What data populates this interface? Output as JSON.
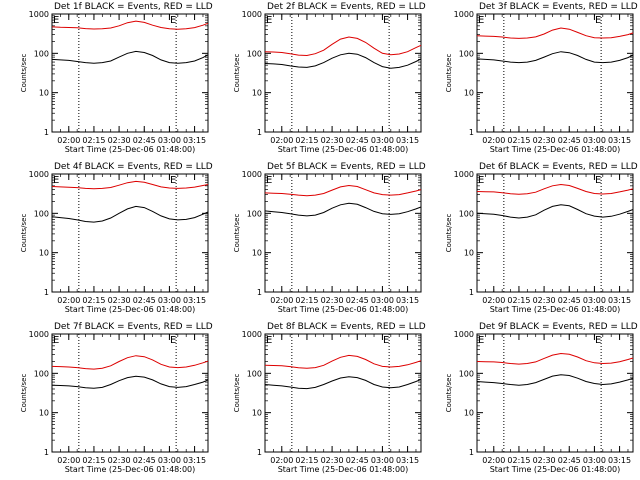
{
  "chart_data": [
    {
      "type": "line",
      "title": "Det 1f BLACK = Events, RED = LLD",
      "xlabel": "Start Time (25-Dec-06 01:48:00)",
      "ylabel": "Counts/sec",
      "x": [
        "01:50",
        "01:55",
        "02:00",
        "02:05",
        "02:10",
        "02:15",
        "02:20",
        "02:25",
        "02:30",
        "02:35",
        "02:40",
        "02:45",
        "02:50",
        "02:55",
        "03:00",
        "03:05",
        "03:10",
        "03:15",
        "03:20",
        "03:23"
      ],
      "series": [
        {
          "name": "Events",
          "color": "#000000",
          "values": [
            70,
            68,
            66,
            62,
            58,
            56,
            58,
            64,
            80,
            100,
            112,
            105,
            88,
            68,
            58,
            56,
            58,
            64,
            78,
            92
          ]
        },
        {
          "name": "LLD",
          "color": "#dd0000",
          "values": [
            470,
            460,
            455,
            445,
            425,
            415,
            420,
            440,
            500,
            600,
            660,
            610,
            520,
            455,
            420,
            410,
            420,
            450,
            520,
            580
          ]
        }
      ],
      "ylim": [
        1,
        1000
      ],
      "yscale": "log",
      "yticks": [
        "1",
        "10",
        "100",
        "1000"
      ],
      "xticks": [
        "02:00",
        "02:15",
        "02:30",
        "02:45",
        "03:00",
        "03:15"
      ],
      "markers": [
        "02:06",
        "03:04"
      ],
      "marker_label": "E"
    },
    {
      "type": "line",
      "title": "Det 2f BLACK = Events, RED = LLD",
      "xlabel": "Start Time (25-Dec-06 01:48:00)",
      "ylabel": "Counts/sec",
      "x": [
        "01:50",
        "01:55",
        "02:00",
        "02:05",
        "02:10",
        "02:15",
        "02:20",
        "02:25",
        "02:30",
        "02:35",
        "02:40",
        "02:45",
        "02:50",
        "02:55",
        "03:00",
        "03:05",
        "03:10",
        "03:15",
        "03:20",
        "03:23"
      ],
      "series": [
        {
          "name": "Events",
          "color": "#000000",
          "values": [
            55,
            54,
            52,
            48,
            45,
            44,
            48,
            58,
            75,
            92,
            100,
            95,
            78,
            58,
            46,
            42,
            44,
            50,
            62,
            72
          ]
        },
        {
          "name": "LLD",
          "color": "#dd0000",
          "values": [
            110,
            108,
            105,
            98,
            90,
            88,
            98,
            120,
            170,
            230,
            260,
            240,
            190,
            135,
            100,
            92,
            96,
            110,
            140,
            160
          ]
        }
      ],
      "ylim": [
        1,
        1000
      ],
      "yscale": "log",
      "yticks": [
        "1",
        "10",
        "100",
        "1000"
      ],
      "xticks": [
        "02:00",
        "02:15",
        "02:30",
        "02:45",
        "03:00",
        "03:15"
      ],
      "markers": [
        "02:06",
        "03:04"
      ],
      "marker_label": "E"
    },
    {
      "type": "line",
      "title": "Det 3f BLACK = Events, RED = LLD",
      "xlabel": "Start Time (25-Dec-06 01:48:00)",
      "ylabel": "Counts/sec",
      "x": [
        "01:50",
        "01:55",
        "02:00",
        "02:05",
        "02:10",
        "02:15",
        "02:20",
        "02:25",
        "02:30",
        "02:35",
        "02:40",
        "02:45",
        "02:50",
        "02:55",
        "03:00",
        "03:05",
        "03:10",
        "03:15",
        "03:20",
        "03:23"
      ],
      "series": [
        {
          "name": "Events",
          "color": "#000000",
          "values": [
            72,
            70,
            68,
            64,
            60,
            58,
            60,
            66,
            80,
            98,
            110,
            104,
            88,
            70,
            60,
            58,
            60,
            66,
            78,
            90
          ]
        },
        {
          "name": "LLD",
          "color": "#dd0000",
          "values": [
            280,
            275,
            270,
            260,
            245,
            240,
            245,
            262,
            310,
            390,
            440,
            410,
            340,
            280,
            250,
            245,
            250,
            270,
            300,
            330
          ]
        }
      ],
      "ylim": [
        1,
        1000
      ],
      "yscale": "log",
      "yticks": [
        "1",
        "10",
        "100",
        "1000"
      ],
      "xticks": [
        "02:00",
        "02:15",
        "02:30",
        "02:45",
        "03:00",
        "03:15"
      ],
      "markers": [
        "02:06",
        "03:04"
      ],
      "marker_label": "E"
    },
    {
      "type": "line",
      "title": "Det 4f BLACK = Events, RED = LLD",
      "xlabel": "Start Time (25-Dec-06 01:48:00)",
      "ylabel": "Counts/sec",
      "x": [
        "01:50",
        "01:55",
        "02:00",
        "02:05",
        "02:10",
        "02:15",
        "02:20",
        "02:25",
        "02:30",
        "02:35",
        "02:40",
        "02:45",
        "02:50",
        "02:55",
        "03:00",
        "03:05",
        "03:10",
        "03:15",
        "03:20",
        "03:23"
      ],
      "series": [
        {
          "name": "Events",
          "color": "#000000",
          "values": [
            82,
            78,
            74,
            68,
            62,
            60,
            64,
            76,
            100,
            130,
            150,
            140,
            112,
            86,
            72,
            68,
            70,
            78,
            95,
            108
          ]
        },
        {
          "name": "LLD",
          "color": "#dd0000",
          "values": [
            480,
            470,
            460,
            450,
            430,
            420,
            430,
            455,
            520,
            600,
            650,
            615,
            540,
            470,
            440,
            430,
            440,
            465,
            510,
            540
          ]
        }
      ],
      "ylim": [
        1,
        1000
      ],
      "yscale": "log",
      "yticks": [
        "1",
        "10",
        "100",
        "1000"
      ],
      "xticks": [
        "02:00",
        "02:15",
        "02:30",
        "02:45",
        "03:00",
        "03:15"
      ],
      "markers": [
        "02:06",
        "03:04"
      ],
      "marker_label": "E"
    },
    {
      "type": "line",
      "title": "Det 5f BLACK = Events, RED = LLD",
      "xlabel": "Start Time (25-Dec-06 01:48:00)",
      "ylabel": "Counts/sec",
      "x": [
        "01:50",
        "01:55",
        "02:00",
        "02:05",
        "02:10",
        "02:15",
        "02:20",
        "02:25",
        "02:30",
        "02:35",
        "02:40",
        "02:45",
        "02:50",
        "02:55",
        "03:00",
        "03:05",
        "03:10",
        "03:15",
        "03:20",
        "03:23"
      ],
      "series": [
        {
          "name": "Events",
          "color": "#000000",
          "values": [
            115,
            110,
            105,
            98,
            90,
            86,
            90,
            105,
            135,
            165,
            180,
            170,
            140,
            112,
            98,
            94,
            98,
            110,
            130,
            145
          ]
        },
        {
          "name": "LLD",
          "color": "#dd0000",
          "values": [
            330,
            325,
            320,
            305,
            290,
            280,
            290,
            320,
            390,
            470,
            510,
            480,
            400,
            330,
            300,
            290,
            300,
            330,
            370,
            400
          ]
        }
      ],
      "ylim": [
        1,
        1000
      ],
      "yscale": "log",
      "yticks": [
        "1",
        "10",
        "100",
        "1000"
      ],
      "xticks": [
        "02:00",
        "02:15",
        "02:30",
        "02:45",
        "03:00",
        "03:15"
      ],
      "markers": [
        "02:06",
        "03:04"
      ],
      "marker_label": "E"
    },
    {
      "type": "line",
      "title": "Det 6f BLACK = Events, RED = LLD",
      "xlabel": "Start Time (25-Dec-06 01:48:00)",
      "ylabel": "Counts/sec",
      "x": [
        "01:50",
        "01:55",
        "02:00",
        "02:05",
        "02:10",
        "02:15",
        "02:20",
        "02:25",
        "02:30",
        "02:35",
        "02:40",
        "02:45",
        "02:50",
        "02:55",
        "03:00",
        "03:05",
        "03:10",
        "03:15",
        "03:20",
        "03:23"
      ],
      "series": [
        {
          "name": "Events",
          "color": "#000000",
          "values": [
            100,
            98,
            95,
            88,
            80,
            76,
            80,
            92,
            120,
            150,
            165,
            155,
            125,
            98,
            85,
            80,
            84,
            95,
            112,
            125
          ]
        },
        {
          "name": "LLD",
          "color": "#dd0000",
          "values": [
            360,
            355,
            350,
            335,
            315,
            305,
            315,
            345,
            420,
            500,
            540,
            510,
            430,
            360,
            320,
            310,
            320,
            350,
            390,
            420
          ]
        }
      ],
      "ylim": [
        1,
        1000
      ],
      "yscale": "log",
      "yticks": [
        "1",
        "10",
        "100",
        "1000"
      ],
      "xticks": [
        "02:00",
        "02:15",
        "02:30",
        "02:45",
        "03:00",
        "03:15"
      ],
      "markers": [
        "02:06",
        "03:04"
      ],
      "marker_label": "E"
    },
    {
      "type": "line",
      "title": "Det 7f BLACK = Events, RED = LLD",
      "xlabel": "Start Time (25-Dec-06 01:48:00)",
      "ylabel": "Counts/sec",
      "x": [
        "01:50",
        "01:55",
        "02:00",
        "02:05",
        "02:10",
        "02:15",
        "02:20",
        "02:25",
        "02:30",
        "02:35",
        "02:40",
        "02:45",
        "02:50",
        "02:55",
        "03:00",
        "03:05",
        "03:10",
        "03:15",
        "03:20",
        "03:23"
      ],
      "series": [
        {
          "name": "Events",
          "color": "#000000",
          "values": [
            50,
            49,
            48,
            46,
            43,
            42,
            44,
            52,
            65,
            78,
            84,
            80,
            68,
            54,
            46,
            44,
            46,
            52,
            60,
            68
          ]
        },
        {
          "name": "LLD",
          "color": "#dd0000",
          "values": [
            150,
            148,
            145,
            140,
            132,
            128,
            135,
            155,
            200,
            250,
            280,
            265,
            220,
            170,
            145,
            140,
            145,
            160,
            185,
            205
          ]
        }
      ],
      "ylim": [
        1,
        1000
      ],
      "yscale": "log",
      "yticks": [
        "1",
        "10",
        "100",
        "1000"
      ],
      "xticks": [
        "02:00",
        "02:15",
        "02:30",
        "02:45",
        "03:00",
        "03:15"
      ],
      "markers": [
        "02:06",
        "03:04"
      ],
      "marker_label": "E"
    },
    {
      "type": "line",
      "title": "Det 8f BLACK = Events, RED = LLD",
      "xlabel": "Start Time (25-Dec-06 01:48:00)",
      "ylabel": "Counts/sec",
      "x": [
        "01:50",
        "01:55",
        "02:00",
        "02:05",
        "02:10",
        "02:15",
        "02:20",
        "02:25",
        "02:30",
        "02:35",
        "02:40",
        "02:45",
        "02:50",
        "02:55",
        "03:00",
        "03:05",
        "03:10",
        "03:15",
        "03:20",
        "03:23"
      ],
      "series": [
        {
          "name": "Events",
          "color": "#000000",
          "values": [
            52,
            50,
            48,
            45,
            42,
            41,
            44,
            52,
            64,
            76,
            82,
            78,
            66,
            52,
            45,
            43,
            45,
            52,
            62,
            70
          ]
        },
        {
          "name": "LLD",
          "color": "#dd0000",
          "values": [
            160,
            158,
            155,
            148,
            138,
            134,
            140,
            160,
            205,
            255,
            285,
            270,
            225,
            175,
            150,
            145,
            150,
            165,
            190,
            210
          ]
        }
      ],
      "ylim": [
        1,
        1000
      ],
      "yscale": "log",
      "yticks": [
        "1",
        "10",
        "100",
        "1000"
      ],
      "xticks": [
        "02:00",
        "02:15",
        "02:30",
        "02:45",
        "03:00",
        "03:15"
      ],
      "markers": [
        "02:06",
        "03:04"
      ],
      "marker_label": "E"
    },
    {
      "type": "line",
      "title": "Det 9f BLACK = Events, RED = LLD",
      "xlabel": "Start Time (25-Dec-06 01:48:00)",
      "ylabel": "Counts/sec",
      "x": [
        "01:50",
        "01:55",
        "02:00",
        "02:05",
        "02:10",
        "02:15",
        "02:20",
        "02:25",
        "02:30",
        "02:35",
        "02:40",
        "02:45",
        "02:50",
        "02:55",
        "03:00",
        "03:05",
        "03:10",
        "03:15",
        "03:20",
        "03:23"
      ],
      "series": [
        {
          "name": "Events",
          "color": "#000000",
          "values": [
            62,
            60,
            58,
            55,
            52,
            50,
            52,
            58,
            70,
            85,
            92,
            88,
            75,
            62,
            55,
            52,
            54,
            60,
            68,
            75
          ]
        },
        {
          "name": "LLD",
          "color": "#dd0000",
          "values": [
            200,
            198,
            195,
            188,
            178,
            172,
            178,
            195,
            240,
            290,
            320,
            305,
            260,
            210,
            185,
            178,
            182,
            198,
            225,
            245
          ]
        }
      ],
      "ylim": [
        1,
        1000
      ],
      "yscale": "log",
      "yticks": [
        "1",
        "10",
        "100",
        "1000"
      ],
      "xticks": [
        "02:00",
        "02:15",
        "02:30",
        "02:45",
        "03:00",
        "03:15"
      ],
      "markers": [
        "02:06",
        "03:04"
      ],
      "marker_label": "E"
    }
  ]
}
